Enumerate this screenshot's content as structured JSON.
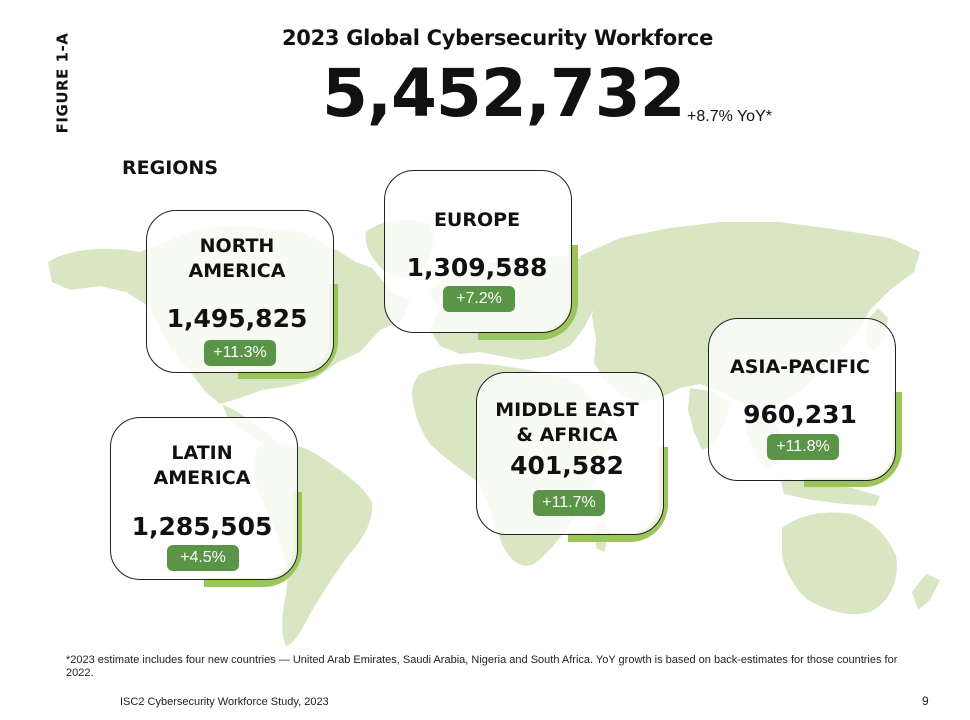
{
  "figure_label": "FIGURE 1-A",
  "title": "2023 Global Cybersecurity Workforce",
  "total": "5,452,732",
  "total_yoy": "+8.7% YoY*",
  "regions_heading": "REGIONS",
  "regions": [
    {
      "name": "NORTH AMERICA",
      "value": "1,495,825",
      "yoy": "+11.3%"
    },
    {
      "name": "EUROPE",
      "value": "1,309,588",
      "yoy": "+7.2%"
    },
    {
      "name": "LATIN AMERICA",
      "value": "1,285,505",
      "yoy": "+4.5%"
    },
    {
      "name": "MIDDLE EAST & AFRICA",
      "value": "401,582",
      "yoy": "+11.7%"
    },
    {
      "name": "ASIA-PACIFIC",
      "value": "960,231",
      "yoy": "+11.8%"
    }
  ],
  "region_name_lines": {
    "north_america": [
      "NORTH",
      "AMERICA"
    ],
    "latin_america": [
      "LATIN",
      "AMERICA"
    ],
    "middle_east_africa": [
      "MIDDLE EAST",
      "& AFRICA"
    ]
  },
  "footnote": "*2023 estimate includes four new countries — United Arab Emirates, Saudi Arabia, Nigeria and South Africa. YoY growth is based on back-estimates for those countries for 2022.",
  "source": "ISC2 Cybersecurity Workforce Study, 2023",
  "page_number": "9",
  "colors": {
    "map_fill": "#d8e6c4",
    "accent_green": "#9bc55a",
    "badge_green": "#5a9446",
    "text": "#111111"
  }
}
